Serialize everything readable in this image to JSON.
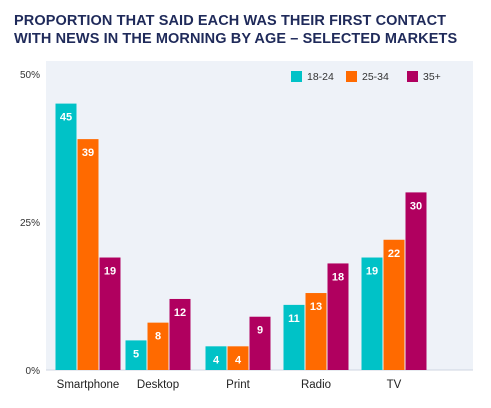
{
  "title": "PROPORTION THAT SAID EACH WAS THEIR FIRST CONTACT WITH NEWS IN THE MORNING BY AGE – SELECTED MARKETS",
  "colors": {
    "title": "#1f2a5a",
    "series_18_24": "#00c2c7",
    "series_25_34": "#ff6a00",
    "series_35_plus": "#b0005f",
    "background_panel": "#eef2f8"
  },
  "chart_data": {
    "type": "bar",
    "title": "PROPORTION THAT SAID EACH WAS THEIR FIRST CONTACT WITH NEWS IN THE MORNING BY AGE – SELECTED MARKETS",
    "xlabel": "",
    "ylabel": "",
    "categories": [
      "Smartphone",
      "Desktop",
      "Print",
      "Radio",
      "TV"
    ],
    "series": [
      {
        "name": "18-24",
        "color": "#00c2c7",
        "values": [
          45,
          5,
          4,
          11,
          19
        ]
      },
      {
        "name": "25-34",
        "color": "#ff6a00",
        "values": [
          39,
          8,
          4,
          13,
          22
        ]
      },
      {
        "name": "35+",
        "color": "#b0005f",
        "values": [
          19,
          12,
          9,
          18,
          30
        ]
      }
    ],
    "ylim": [
      0,
      50
    ],
    "yticks": [
      0,
      25,
      50
    ],
    "ytick_labels": [
      "0%",
      "25%",
      "50%"
    ],
    "grid": false,
    "legend_position": "top-right"
  }
}
